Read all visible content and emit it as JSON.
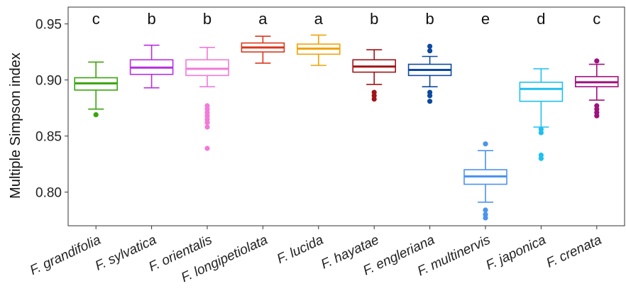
{
  "chart_data": {
    "type": "boxplot",
    "title": "",
    "xlabel": "",
    "ylabel": "Multiple Simpson index",
    "ylim": [
      0.77,
      0.965
    ],
    "yticks": [
      0.8,
      0.85,
      0.9,
      0.95
    ],
    "ytick_labels": [
      "0.80",
      "0.85",
      "0.90",
      "0.95"
    ],
    "grid": false,
    "categories": [
      "F. grandifolia",
      "F. sylvatica",
      "F. orientalis",
      "F. longipetiolata",
      "F. lucida",
      "F. hayatae",
      "F. engleriana",
      "F. multinervis",
      "F. japonica",
      "F. crenata"
    ],
    "letters": [
      "c",
      "b",
      "b",
      "a",
      "a",
      "b",
      "b",
      "e",
      "d",
      "c"
    ],
    "colors": [
      "#3aa50e",
      "#b72fe0",
      "#f27ad8",
      "#d9381e",
      "#f0a30a",
      "#a11417",
      "#0d4aa0",
      "#4c93f0",
      "#1ec0f0",
      "#a0107e"
    ],
    "boxes": [
      {
        "whisker_low": 0.874,
        "q1": 0.891,
        "median": 0.897,
        "q3": 0.902,
        "whisker_high": 0.916,
        "outliers": [
          0.869
        ]
      },
      {
        "whisker_low": 0.893,
        "q1": 0.905,
        "median": 0.911,
        "q3": 0.918,
        "whisker_high": 0.931,
        "outliers": []
      },
      {
        "whisker_low": 0.894,
        "q1": 0.904,
        "median": 0.91,
        "q3": 0.918,
        "whisker_high": 0.929,
        "outliers": [
          0.877,
          0.874,
          0.871,
          0.868,
          0.865,
          0.862,
          0.858,
          0.839
        ]
      },
      {
        "whisker_low": 0.915,
        "q1": 0.925,
        "median": 0.929,
        "q3": 0.933,
        "whisker_high": 0.939,
        "outliers": []
      },
      {
        "whisker_low": 0.913,
        "q1": 0.923,
        "median": 0.928,
        "q3": 0.932,
        "whisker_high": 0.94,
        "outliers": []
      },
      {
        "whisker_low": 0.896,
        "q1": 0.907,
        "median": 0.912,
        "q3": 0.918,
        "whisker_high": 0.927,
        "outliers": [
          0.889,
          0.886,
          0.883
        ]
      },
      {
        "whisker_low": 0.894,
        "q1": 0.904,
        "median": 0.909,
        "q3": 0.914,
        "whisker_high": 0.921,
        "outliers": [
          0.93,
          0.926,
          0.889,
          0.886,
          0.881
        ]
      },
      {
        "whisker_low": 0.791,
        "q1": 0.807,
        "median": 0.814,
        "q3": 0.82,
        "whisker_high": 0.837,
        "outliers": [
          0.843,
          0.784,
          0.78,
          0.777
        ]
      },
      {
        "whisker_low": 0.858,
        "q1": 0.881,
        "median": 0.892,
        "q3": 0.898,
        "whisker_high": 0.91,
        "outliers": [
          0.856,
          0.853,
          0.833,
          0.83
        ]
      },
      {
        "whisker_low": 0.882,
        "q1": 0.894,
        "median": 0.898,
        "q3": 0.903,
        "whisker_high": 0.914,
        "outliers": [
          0.917,
          0.877,
          0.874,
          0.871,
          0.868
        ]
      }
    ]
  }
}
